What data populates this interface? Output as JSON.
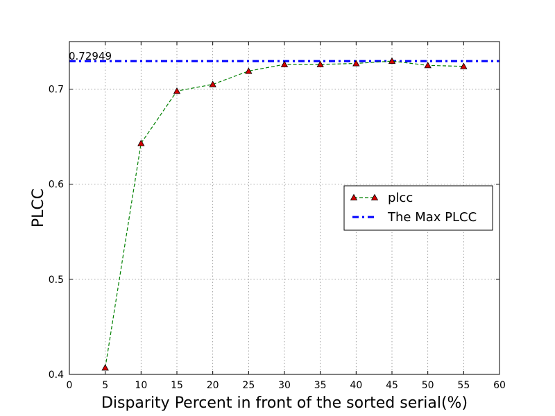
{
  "chart_data": {
    "type": "line",
    "title": "",
    "xlabel": "Disparity Percent in front of the sorted serial(%)",
    "ylabel": "PLCC",
    "xlim": [
      0,
      60
    ],
    "ylim": [
      0.4,
      0.75
    ],
    "x_ticks": [
      "0",
      "5",
      "10",
      "15",
      "20",
      "25",
      "30",
      "35",
      "40",
      "45",
      "50",
      "55",
      "60"
    ],
    "y_ticks": [
      "0.4",
      "0.5",
      "0.6",
      "0.7"
    ],
    "grid": true,
    "legend_position": "center-right",
    "series": [
      {
        "name": "plcc",
        "style": "dashed-line-triangle-markers",
        "line_color": "#008000",
        "marker_color": "#d40000",
        "x": [
          5,
          10,
          15,
          20,
          25,
          30,
          35,
          40,
          45,
          50,
          55
        ],
        "y": [
          0.407,
          0.643,
          0.698,
          0.705,
          0.719,
          0.726,
          0.726,
          0.727,
          0.7295,
          0.725,
          0.724
        ]
      },
      {
        "name": "The Max PLCC",
        "style": "dash-dot-line",
        "line_color": "#0000ff",
        "y_constant": 0.7295
      }
    ],
    "annotations": [
      {
        "text": "0.72949",
        "x": 0,
        "y": 0.7295
      }
    ]
  }
}
